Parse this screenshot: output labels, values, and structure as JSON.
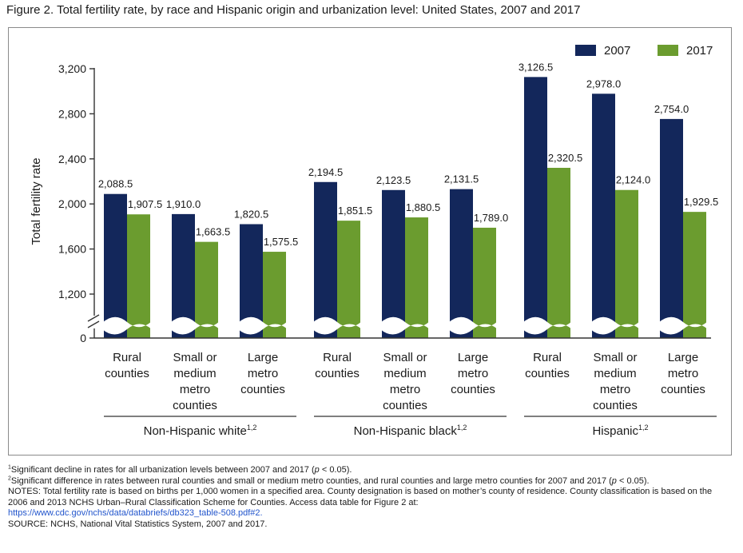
{
  "title": "Figure 2. Total fertility rate, by race and Hispanic origin and urbanization level: United States, 2007 and 2017",
  "chart_data": {
    "type": "bar",
    "ylabel": "Total fertility rate",
    "ylim": [
      0,
      3200
    ],
    "yticks": [
      "0",
      "1,200",
      "1,600",
      "2,000",
      "2,400",
      "2,800",
      "3,200"
    ],
    "axis_break": true,
    "legend_position": "top-right",
    "series": [
      {
        "name": "2007",
        "color": "#13275b"
      },
      {
        "name": "2017",
        "color": "#6b9c2f"
      }
    ],
    "groups": [
      {
        "label": "Non-Hispanic white",
        "sup": "1,2",
        "categories": [
          {
            "label": [
              "Rural",
              "counties"
            ],
            "values": [
              2088.5,
              1907.5
            ],
            "labels": [
              "2,088.5",
              "1,907.5"
            ]
          },
          {
            "label": [
              "Small or",
              "medium",
              "metro",
              "counties"
            ],
            "values": [
              1910.0,
              1663.5
            ],
            "labels": [
              "1,910.0",
              "1,663.5"
            ]
          },
          {
            "label": [
              "Large",
              "metro",
              "counties"
            ],
            "values": [
              1820.5,
              1575.5
            ],
            "labels": [
              "1,820.5",
              "1,575.5"
            ]
          }
        ]
      },
      {
        "label": "Non-Hispanic black",
        "sup": "1,2",
        "categories": [
          {
            "label": [
              "Rural",
              "counties"
            ],
            "values": [
              2194.5,
              1851.5
            ],
            "labels": [
              "2,194.5",
              "1,851.5"
            ]
          },
          {
            "label": [
              "Small or",
              "medium",
              "metro",
              "counties"
            ],
            "values": [
              2123.5,
              1880.5
            ],
            "labels": [
              "2,123.5",
              "1,880.5"
            ]
          },
          {
            "label": [
              "Large",
              "metro",
              "counties"
            ],
            "values": [
              2131.5,
              1789.0
            ],
            "labels": [
              "2,131.5",
              "1,789.0"
            ]
          }
        ]
      },
      {
        "label": "Hispanic",
        "sup": "1,2",
        "categories": [
          {
            "label": [
              "Rural",
              "counties"
            ],
            "values": [
              3126.5,
              2320.5
            ],
            "labels": [
              "3,126.5",
              "2,320.5"
            ]
          },
          {
            "label": [
              "Small or",
              "medium",
              "metro",
              "counties"
            ],
            "values": [
              2978.0,
              2124.0
            ],
            "labels": [
              "2,978.0",
              "2,124.0"
            ]
          },
          {
            "label": [
              "Large",
              "metro",
              "counties"
            ],
            "values": [
              2754.0,
              1929.5
            ],
            "labels": [
              "2,754.0",
              "1,929.5"
            ]
          }
        ]
      }
    ]
  },
  "footnotes": {
    "fn1_mark": "1",
    "fn1_a": "Significant decline in rates for all urbanization levels between 2007 and 2017 (",
    "fn1_p": "p",
    "fn1_b": " < 0.05).",
    "fn2_mark": "2",
    "fn2_a": "Significant difference in rates between rural counties and small or medium metro counties, and rural counties and large metro counties for 2007 and 2017 (",
    "fn2_p": "p",
    "fn2_b": " < 0.05).",
    "notes": "NOTES: Total fertility rate is based on births per 1,000 women in a specified area. County designation is based on mother’s county of residence. County classification is based on the 2006 and 2013 NCHS Urban–Rural Classification Scheme for Counties. Access data table for Figure 2 at:",
    "link": "https://www.cdc.gov/nchs/data/databriefs/db323_table-508.pdf#2.",
    "source": "SOURCE: NCHS, National Vital Statistics System, 2007 and 2017."
  }
}
